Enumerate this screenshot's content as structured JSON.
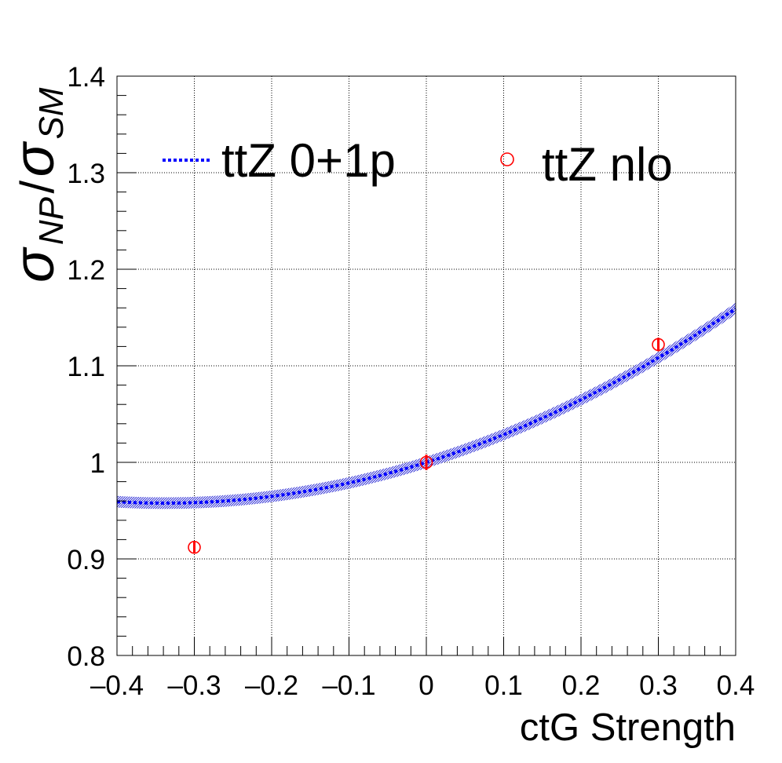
{
  "chart_data": {
    "type": "line",
    "xlabel": "ctG Strength",
    "ylabel": {
      "base": "σ",
      "num_sub": "NP",
      "sep": "/",
      "den_sub": "SM"
    },
    "xlim": [
      -0.4,
      0.4
    ],
    "ylim": [
      0.8,
      1.4
    ],
    "x_ticks": [
      -0.4,
      -0.3,
      -0.2,
      -0.1,
      0,
      0.1,
      0.2,
      0.3,
      0.4
    ],
    "x_tick_labels": [
      "–0.4",
      "–0.3",
      "–0.2",
      "–0.1",
      "0",
      "0.1",
      "0.2",
      "0.3",
      "0.4"
    ],
    "y_ticks": [
      0.8,
      0.9,
      1.0,
      1.1,
      1.2,
      1.3,
      1.4
    ],
    "y_tick_labels": [
      "0.8",
      "0.9",
      "1",
      "1.1",
      "1.2",
      "1.3",
      "1.4"
    ],
    "grid": true,
    "legend_position": "top",
    "series": [
      {
        "name": "ttZ 0+1p",
        "kind": "dotted-curve-with-band",
        "color": "#0000ff",
        "band_color": "#0000cc",
        "quadratic_coeffs": {
          "a": 0.37,
          "b": 0.25,
          "c": 1.0
        },
        "band_halfwidth": 0.006
      },
      {
        "name": "ttZ nlo",
        "kind": "points-with-errors",
        "color": "#ff0000",
        "points": [
          {
            "x": -0.3,
            "y": 0.912,
            "err": 0.006
          },
          {
            "x": 0.0,
            "y": 1.0,
            "err": 0.008
          },
          {
            "x": 0.3,
            "y": 1.122,
            "err": 0.007
          }
        ]
      }
    ]
  }
}
